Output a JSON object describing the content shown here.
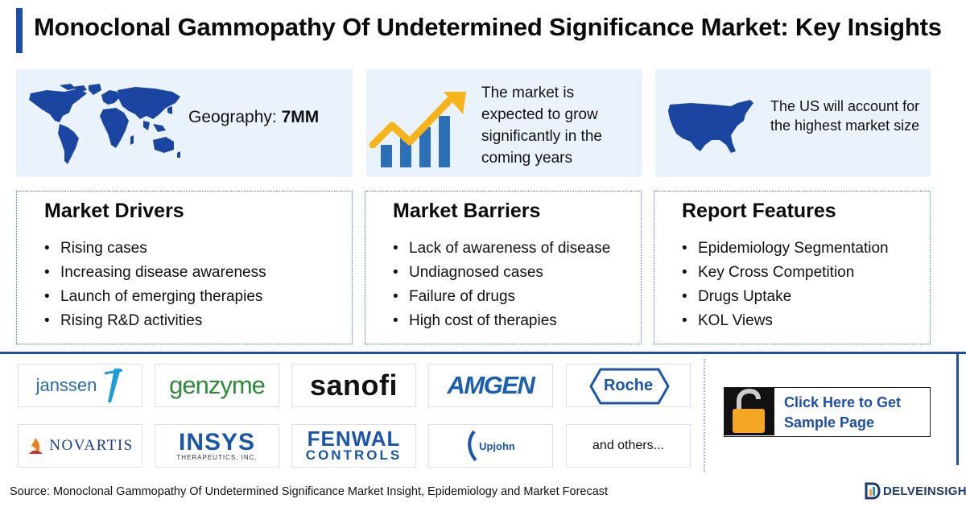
{
  "header": {
    "title": "Monoclonal Gammopathy Of Undetermined Significance Market: Key Insights"
  },
  "insights": {
    "geography_label": "Geography:",
    "geography_value": "7MM",
    "growth_text": "The market is expected to grow significantly in the coming years",
    "us_text": "The US will account for the highest market size"
  },
  "drivers": {
    "title": "Market Drivers",
    "items": [
      "Rising cases",
      "Increasing disease awareness",
      "Launch of emerging therapies",
      "Rising R&D activities"
    ]
  },
  "barriers": {
    "title": "Market Barriers",
    "items": [
      "Lack of awareness of disease",
      "Undiagnosed cases",
      "Failure of drugs",
      "High cost of therapies"
    ]
  },
  "features": {
    "title": "Report Features",
    "items": [
      "Epidemiology Segmentation",
      "Key Cross Competition",
      "Drugs Uptake",
      "KOL Views"
    ]
  },
  "companies": {
    "logos": [
      "janssen",
      "genzyme",
      "sanofi",
      "AMGEN",
      "Roche",
      "NOVARTIS",
      "INSYS",
      "THERAPEUTICS, INC.",
      "FENWAL",
      "CONTROLS",
      "Upjohn"
    ],
    "others_label": "and others..."
  },
  "cta": {
    "label": "Click Here to Get Sample Page"
  },
  "footer": {
    "source": "Source: Monoclonal Gammopathy Of Undetermined Significance Market Insight, Epidemiology and Market Forecast",
    "brand": "DELVEINSIGHT"
  },
  "colors": {
    "brand_blue": "#1e4fa8",
    "card_bg": "#eaf2fb",
    "arrow_yellow": "#f5b51a",
    "bar_blue": "#2a6fb8",
    "lock_orange": "#f5a623"
  },
  "icons": [
    "world-map-icon",
    "growth-chart-icon",
    "us-map-icon",
    "padlock-icon"
  ]
}
